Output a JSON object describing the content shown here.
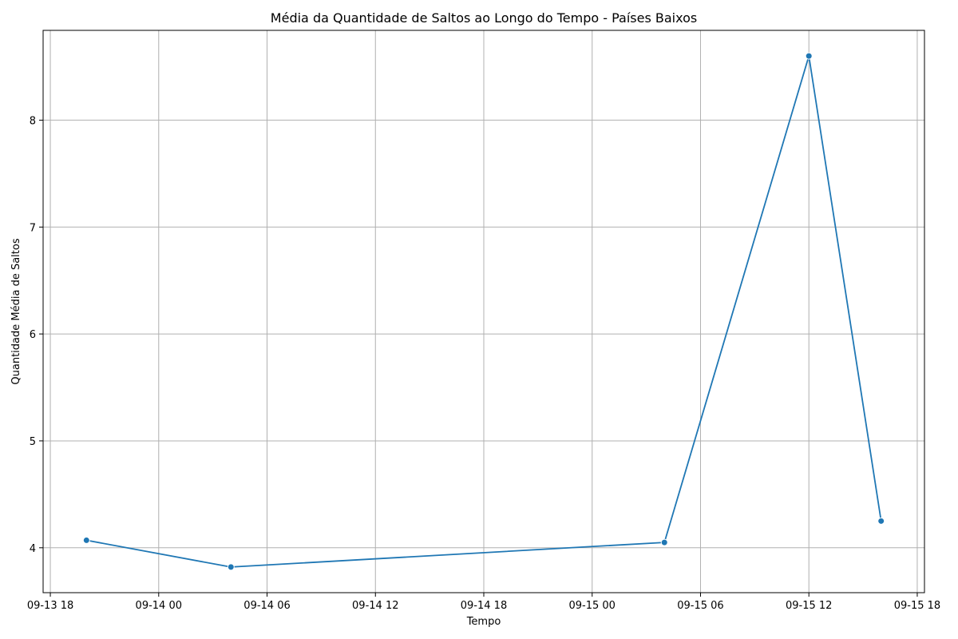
{
  "chart_data": {
    "type": "line",
    "title": "Média da Quantidade de Saltos ao Longo do Tempo - Países Baixos",
    "xlabel": "Tempo",
    "ylabel": "Quantidade Média de Saltos",
    "grid": true,
    "x_axis_type": "datetime",
    "xlim": [
      "2024-09-13T17:36",
      "2024-09-15T18:24"
    ],
    "ylim": [
      3.58,
      8.84
    ],
    "x_ticks": [
      {
        "value": "2024-09-13T18:00",
        "label": "09-13 18"
      },
      {
        "value": "2024-09-14T00:00",
        "label": "09-14 00"
      },
      {
        "value": "2024-09-14T06:00",
        "label": "09-14 06"
      },
      {
        "value": "2024-09-14T12:00",
        "label": "09-14 12"
      },
      {
        "value": "2024-09-14T18:00",
        "label": "09-14 18"
      },
      {
        "value": "2024-09-15T00:00",
        "label": "09-15 00"
      },
      {
        "value": "2024-09-15T06:00",
        "label": "09-15 06"
      },
      {
        "value": "2024-09-15T12:00",
        "label": "09-15 12"
      },
      {
        "value": "2024-09-15T18:00",
        "label": "09-15 18"
      }
    ],
    "y_ticks": [
      {
        "value": 4,
        "label": "4"
      },
      {
        "value": 5,
        "label": "5"
      },
      {
        "value": 6,
        "label": "6"
      },
      {
        "value": 7,
        "label": "7"
      },
      {
        "value": 8,
        "label": "8"
      }
    ],
    "series": [
      {
        "color": "#1f77b4",
        "marker": "circle",
        "points": [
          {
            "x": "2024-09-13T20:00",
            "y": 4.07
          },
          {
            "x": "2024-09-14T04:00",
            "y": 3.82
          },
          {
            "x": "2024-09-15T04:00",
            "y": 4.05
          },
          {
            "x": "2024-09-15T12:00",
            "y": 8.6
          },
          {
            "x": "2024-09-15T16:00",
            "y": 4.25
          }
        ]
      }
    ]
  }
}
